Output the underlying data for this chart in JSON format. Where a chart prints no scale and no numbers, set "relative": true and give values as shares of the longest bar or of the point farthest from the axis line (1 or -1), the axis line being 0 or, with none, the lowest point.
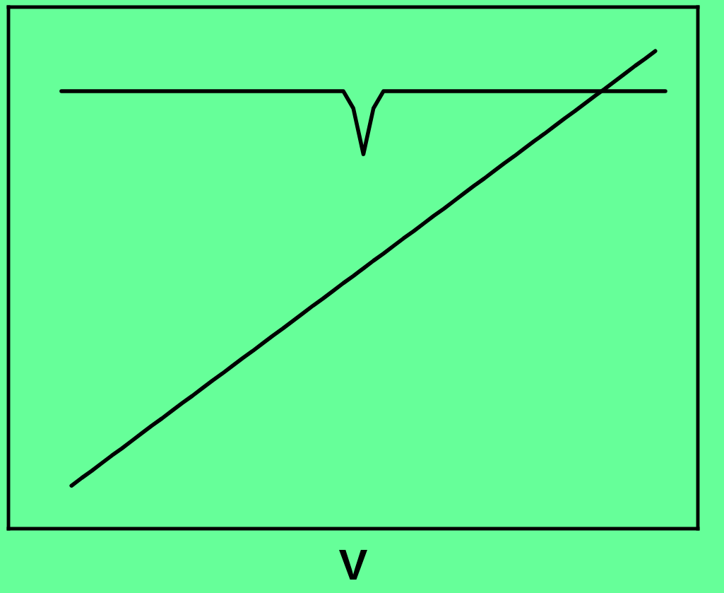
{
  "chart_data": {
    "type": "line",
    "relative": true,
    "xlabel": "V",
    "tick_labels": false,
    "categories": [
      null,
      null,
      null,
      null,
      null,
      null,
      null,
      null,
      null,
      null,
      null,
      null,
      null,
      null,
      null,
      null,
      null,
      null,
      null,
      null,
      null,
      null,
      null,
      null,
      null,
      null,
      null,
      null,
      null,
      null,
      null,
      null,
      null,
      null,
      null,
      null,
      null,
      null,
      null,
      null,
      null,
      null,
      null,
      null,
      null,
      null,
      null,
      null,
      null,
      null,
      null,
      null,
      null,
      null,
      null,
      null,
      null,
      null,
      null,
      null,
      null
    ],
    "series": [
      {
        "color": "#000000",
        "values": [
          0.916,
          0.916,
          0.916,
          0.916,
          0.916,
          0.916,
          0.916,
          0.916,
          0.916,
          0.916,
          0.916,
          0.916,
          0.916,
          0.916,
          0.916,
          0.916,
          0.916,
          0.916,
          0.916,
          0.916,
          0.916,
          0.916,
          0.916,
          0.916,
          0.916,
          0.916,
          0.916,
          0.916,
          0.916,
          0.88,
          0.784,
          0.88,
          0.916,
          0.916,
          0.916,
          0.916,
          0.916,
          0.916,
          0.916,
          0.916,
          0.916,
          0.916,
          0.916,
          0.916,
          0.916,
          0.916,
          0.916,
          0.916,
          0.916,
          0.916,
          0.916,
          0.916,
          0.916,
          0.916,
          0.916,
          0.916,
          0.916,
          0.916,
          0.916,
          0.916,
          0.916
        ]
      },
      {
        "color": "#000000",
        "values": [
          null,
          0.09,
          0.106,
          0.121,
          0.137,
          0.153,
          0.168,
          0.184,
          0.2,
          0.216,
          0.231,
          0.247,
          0.263,
          0.278,
          0.294,
          0.31,
          0.325,
          0.341,
          0.357,
          0.372,
          0.388,
          0.404,
          0.419,
          0.435,
          0.451,
          0.467,
          0.482,
          0.498,
          0.514,
          0.529,
          0.545,
          0.561,
          0.576,
          0.592,
          0.608,
          0.623,
          0.639,
          0.655,
          0.67,
          0.686,
          0.702,
          0.718,
          0.733,
          0.749,
          0.765,
          0.78,
          0.796,
          0.812,
          0.827,
          0.843,
          0.859,
          0.874,
          0.89,
          0.906,
          0.921,
          0.937,
          0.953,
          0.969,
          0.984,
          1.0,
          null
        ]
      }
    ]
  }
}
